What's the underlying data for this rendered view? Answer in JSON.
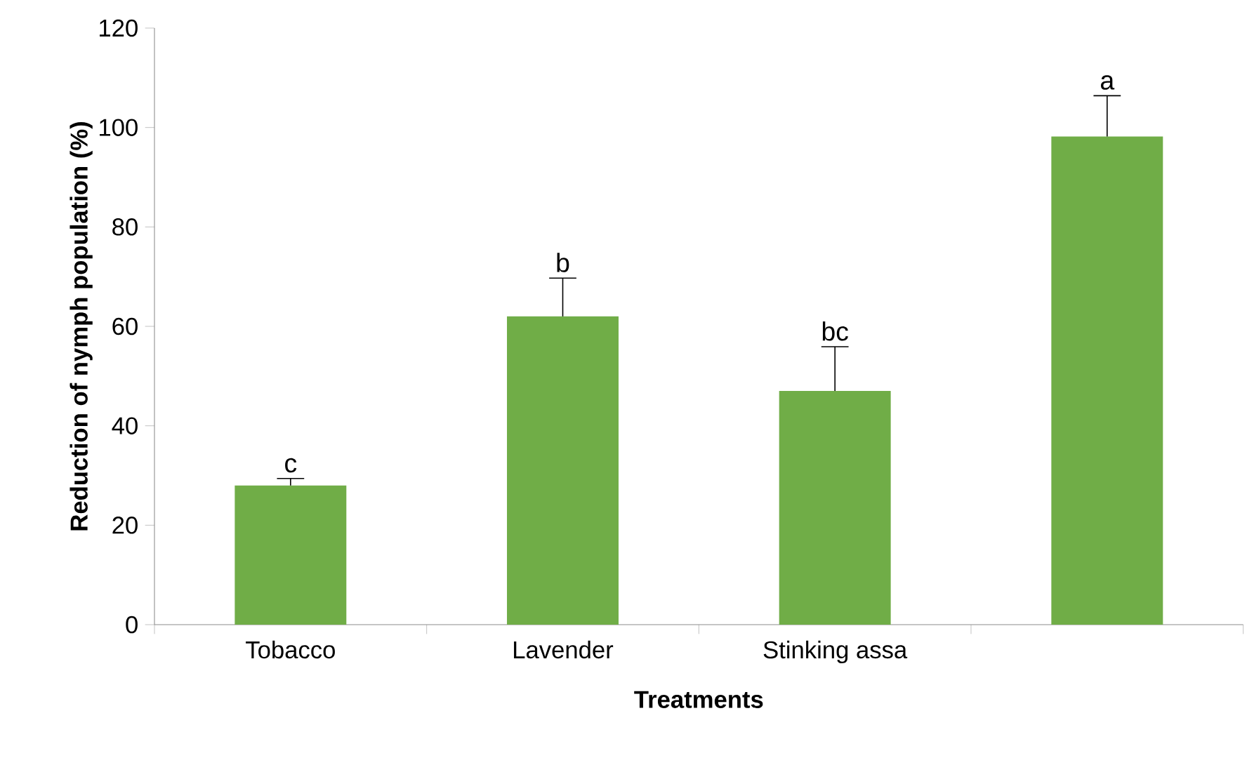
{
  "chart_data": {
    "type": "bar",
    "xlabel": "Treatments",
    "ylabel": "Reduction of nymph population (%)",
    "categories": [
      "Tobacco",
      "Lavender",
      "Stinking assa",
      null
    ],
    "values": [
      28,
      62,
      47,
      98.2
    ],
    "color": "#70ad47",
    "errors": [
      [
        28,
        29.4
      ],
      [
        62,
        69.7
      ],
      [
        47,
        55.9
      ],
      [
        98.2,
        106.4
      ]
    ],
    "ylim": [
      0,
      120
    ],
    "yticks": [
      0,
      20,
      40,
      60,
      80,
      100,
      120
    ],
    "annotations": [
      {
        "text": "c",
        "x": "Tobacco",
        "y": 29.4
      },
      {
        "text": "b",
        "x": "Lavender",
        "y": 69.7
      },
      {
        "text": "bc",
        "x": "Stinking assa",
        "y": 55.9
      },
      {
        "text": "a",
        "y": 106.4
      }
    ]
  }
}
